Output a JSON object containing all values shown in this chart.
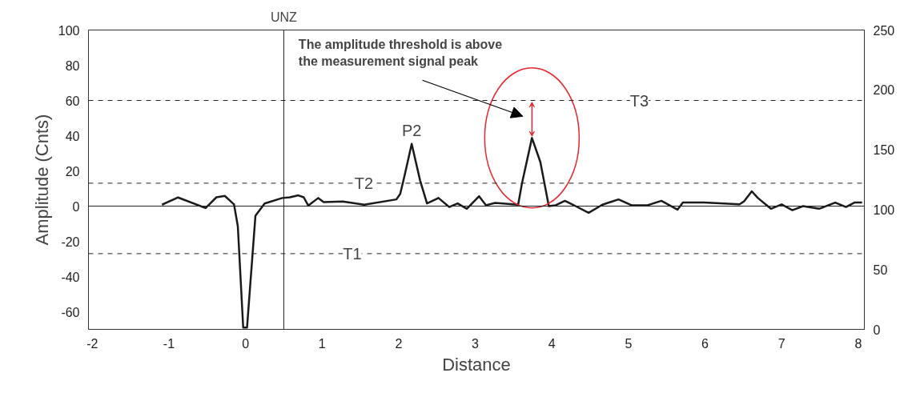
{
  "chart_data": {
    "type": "line",
    "xlabel": "Distance",
    "ylabel": "Amplitude (Cnts)",
    "x": [
      -1.09,
      -0.88,
      -0.52,
      -0.38,
      -0.27,
      -0.15,
      -0.1,
      -0.03,
      0.02,
      0.13,
      0.25,
      0.48,
      0.58,
      0.69,
      0.76,
      0.82,
      0.95,
      1.02,
      1.27,
      1.55,
      1.97,
      2.02,
      2.07,
      2.17,
      2.28,
      2.37,
      2.52,
      2.66,
      2.77,
      2.89,
      3.05,
      3.14,
      3.26,
      3.56,
      3.61,
      3.74,
      3.85,
      3.96,
      4.05,
      4.17,
      4.31,
      4.48,
      4.66,
      4.87,
      5.04,
      5.25,
      5.43,
      5.64,
      5.71,
      5.99,
      6.45,
      6.51,
      6.61,
      6.69,
      6.86,
      7.0,
      7.14,
      7.28,
      7.49,
      7.7,
      7.84,
      7.95,
      8.05
    ],
    "series": [
      {
        "color": "#1a1a1a",
        "values": [
          0.8,
          4.9,
          -1.1,
          5,
          5.8,
          1,
          -11.5,
          -69,
          -69,
          -5.4,
          1.5,
          4.6,
          5,
          6.1,
          5,
          0.3,
          4.6,
          2.3,
          2.6,
          0.8,
          3.8,
          6.9,
          16,
          35.3,
          14.5,
          1.5,
          4.6,
          -0.5,
          1.5,
          -1.5,
          5.6,
          0.5,
          1.8,
          0.8,
          13,
          38.7,
          25,
          0,
          0.5,
          3,
          0,
          -3.8,
          0.8,
          3.8,
          0.5,
          0.5,
          3,
          -2,
          2,
          2,
          1,
          2.7,
          8.4,
          4.6,
          -1.5,
          1,
          -2.3,
          0,
          -1.5,
          2,
          -0.5,
          2,
          2
        ]
      }
    ],
    "xlim": [
      -2.05,
      8.08
    ],
    "xticks": [
      -2,
      -1,
      0,
      1,
      2,
      3,
      4,
      5,
      6,
      7,
      8
    ],
    "ylim": [
      -70,
      100
    ],
    "yticks": [
      -60,
      -40,
      -20,
      0,
      20,
      40,
      60,
      80,
      100
    ],
    "y2lim": [
      0,
      250
    ],
    "y2ticks": [
      0,
      50,
      100,
      150,
      200,
      250
    ],
    "ref_lines": [
      {
        "axis": "y",
        "value": 60,
        "label": "T3",
        "line_style": "dashed"
      },
      {
        "axis": "y",
        "value": 13,
        "label": "T2",
        "line_style": "dashed"
      },
      {
        "axis": "y",
        "value": -27,
        "label": "T1",
        "line_style": "dashed"
      },
      {
        "axis": "y",
        "value": 0,
        "label": null,
        "line_style": "solid"
      },
      {
        "axis": "x",
        "value": 0.5,
        "label": "UNZ",
        "line_style": "solid"
      }
    ],
    "annotations": [
      {
        "text": "P2",
        "x": 2.17,
        "y": 35.3
      },
      "The amplitude threshold is above\nthe measurement signal peak"
    ],
    "grid": false,
    "marker": "none",
    "line_style": "solid"
  }
}
